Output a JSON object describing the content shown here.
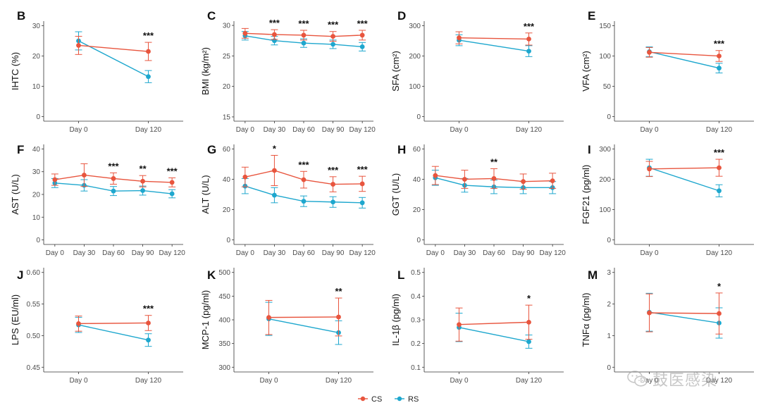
{
  "legend": {
    "entries": [
      {
        "name": "CS",
        "color": "#E8553E"
      },
      {
        "name": "RS",
        "color": "#1EA7CE"
      }
    ]
  },
  "watermark": {
    "text": "鼓医感染",
    "icon": "wechat-icon"
  },
  "chart_data": [
    {
      "panel": "B",
      "type": "line",
      "ylabel": "IHTC (%)",
      "categories": [
        "Day 0",
        "Day 120"
      ],
      "ylim": [
        -1.5,
        31.5
      ],
      "yticks": [
        0,
        10,
        20,
        30
      ],
      "series": [
        {
          "name": "CS",
          "values": [
            23.5,
            21.5
          ],
          "err": [
            3.0,
            3.0
          ]
        },
        {
          "name": "RS",
          "values": [
            25.0,
            13.2
          ],
          "err": [
            3.0,
            2.0
          ]
        }
      ],
      "annotations": [
        {
          "category": "Day 120",
          "text": "***"
        }
      ]
    },
    {
      "panel": "C",
      "type": "line",
      "ylabel": "BMI (kg/m²)",
      "categories": [
        "Day 0",
        "Day 30",
        "Day 60",
        "Day 90",
        "Day 120"
      ],
      "ylim": [
        14.3,
        30.7
      ],
      "yticks": [
        15,
        20,
        25,
        30
      ],
      "series": [
        {
          "name": "CS",
          "values": [
            28.7,
            28.5,
            28.4,
            28.2,
            28.4
          ],
          "err": [
            0.8,
            0.8,
            0.8,
            0.8,
            0.8
          ]
        },
        {
          "name": "RS",
          "values": [
            28.3,
            27.5,
            27.1,
            26.9,
            26.5
          ],
          "err": [
            0.7,
            0.7,
            0.7,
            0.7,
            0.7
          ]
        }
      ],
      "annotations": [
        {
          "category": "Day 30",
          "text": "***"
        },
        {
          "category": "Day 60",
          "text": "***"
        },
        {
          "category": "Day 90",
          "text": "***"
        },
        {
          "category": "Day 120",
          "text": "***"
        }
      ]
    },
    {
      "panel": "D",
      "type": "line",
      "ylabel": "SFA (cm²)",
      "categories": [
        "Day 0",
        "Day 120"
      ],
      "ylim": [
        -15,
        315
      ],
      "yticks": [
        0,
        100,
        200,
        300
      ],
      "series": [
        {
          "name": "CS",
          "values": [
            260,
            256
          ],
          "err": [
            20,
            20
          ]
        },
        {
          "name": "RS",
          "values": [
            252,
            216
          ],
          "err": [
            18,
            18
          ]
        }
      ],
      "annotations": [
        {
          "category": "Day 120",
          "text": "***"
        }
      ]
    },
    {
      "panel": "E",
      "type": "line",
      "ylabel": "VFA (cm²)",
      "categories": [
        "Day 0",
        "Day 120"
      ],
      "ylim": [
        -7.5,
        157.5
      ],
      "yticks": [
        0,
        50,
        100,
        150
      ],
      "series": [
        {
          "name": "CS",
          "values": [
            106,
            100
          ],
          "err": [
            8,
            9
          ]
        },
        {
          "name": "RS",
          "values": [
            107,
            80
          ],
          "err": [
            8,
            8
          ]
        }
      ],
      "annotations": [
        {
          "category": "Day 120",
          "text": "***"
        }
      ]
    },
    {
      "panel": "F",
      "type": "line",
      "ylabel": "AST (U/L)",
      "categories": [
        "Day 0",
        "Day 30",
        "Day 60",
        "Day 90",
        "Day 120"
      ],
      "ylim": [
        -2,
        42
      ],
      "yticks": [
        0,
        10,
        20,
        30,
        40
      ],
      "series": [
        {
          "name": "CS",
          "values": [
            26.5,
            28.5,
            27.0,
            25.8,
            25.3
          ],
          "err": [
            2.5,
            5.0,
            2.5,
            2.5,
            2.0
          ]
        },
        {
          "name": "RS",
          "values": [
            25.0,
            24.0,
            21.5,
            21.7,
            20.3
          ],
          "err": [
            2.0,
            2.5,
            2.0,
            2.0,
            1.8
          ]
        }
      ],
      "annotations": [
        {
          "category": "Day 60",
          "text": "***"
        },
        {
          "category": "Day 90",
          "text": "**"
        },
        {
          "category": "Day 120",
          "text": "***"
        }
      ]
    },
    {
      "panel": "G",
      "type": "line",
      "ylabel": "ALT (U/L)",
      "categories": [
        "Day 0",
        "Day 30",
        "Day 60",
        "Day 90",
        "Day 120"
      ],
      "ylim": [
        -3,
        63
      ],
      "yticks": [
        0,
        20,
        40,
        60
      ],
      "series": [
        {
          "name": "CS",
          "values": [
            41.5,
            45.8,
            39.7,
            36.7,
            37.0
          ],
          "err": [
            6.5,
            10.0,
            5.5,
            5.0,
            5.0
          ]
        },
        {
          "name": "RS",
          "values": [
            35.5,
            29.5,
            25.5,
            25.0,
            24.5
          ],
          "err": [
            5.0,
            5.0,
            3.5,
            3.5,
            3.5
          ]
        }
      ],
      "annotations": [
        {
          "category": "Day 30",
          "text": "*"
        },
        {
          "category": "Day 60",
          "text": "***"
        },
        {
          "category": "Day 90",
          "text": "***"
        },
        {
          "category": "Day 120",
          "text": "***"
        }
      ]
    },
    {
      "panel": "H",
      "type": "line",
      "ylabel": "GGT (U/L)",
      "categories": [
        "Day 0",
        "Day 30",
        "Day 60",
        "Day 90",
        "Day 120"
      ],
      "ylim": [
        -3,
        63
      ],
      "yticks": [
        0,
        20,
        40,
        60
      ],
      "series": [
        {
          "name": "CS",
          "values": [
            42.5,
            40.0,
            40.5,
            38.5,
            39.0
          ],
          "err": [
            6.0,
            6.0,
            6.5,
            5.0,
            5.0
          ]
        },
        {
          "name": "RS",
          "values": [
            41.0,
            36.0,
            35.0,
            34.5,
            34.5
          ],
          "err": [
            5.0,
            4.5,
            4.5,
            4.0,
            4.0
          ]
        }
      ],
      "annotations": [
        {
          "category": "Day 60",
          "text": "**"
        }
      ]
    },
    {
      "panel": "I",
      "type": "line",
      "ylabel": "FGF21 (pg/ml)",
      "categories": [
        "Day 0",
        "Day 120"
      ],
      "ylim": [
        -15,
        315
      ],
      "yticks": [
        0,
        100,
        200,
        300
      ],
      "series": [
        {
          "name": "CS",
          "values": [
            234,
            238
          ],
          "err": [
            25,
            28
          ]
        },
        {
          "name": "RS",
          "values": [
            238,
            162
          ],
          "err": [
            28,
            20
          ]
        }
      ],
      "annotations": [
        {
          "category": "Day 120",
          "text": "***"
        }
      ]
    },
    {
      "panel": "J",
      "type": "line",
      "ylabel": "LPS (EU/ml)",
      "categories": [
        "Day 0",
        "Day 120"
      ],
      "ylim": [
        0.4425,
        0.6075
      ],
      "yticks": [
        0.45,
        0.5,
        0.55,
        0.6
      ],
      "ytick_labels": [
        "0.45",
        "0.50",
        "0.55",
        "0.60"
      ],
      "series": [
        {
          "name": "CS",
          "values": [
            0.519,
            0.52
          ],
          "err": [
            0.012,
            0.012
          ]
        },
        {
          "name": "RS",
          "values": [
            0.517,
            0.493
          ],
          "err": [
            0.012,
            0.01
          ]
        }
      ],
      "annotations": [
        {
          "category": "Day 120",
          "text": "***"
        }
      ]
    },
    {
      "panel": "K",
      "type": "line",
      "ylabel": "MCP-1 (pg/ml)",
      "categories": [
        "Day 0",
        "Day 120"
      ],
      "ylim": [
        290,
        510
      ],
      "yticks": [
        300,
        350,
        400,
        450,
        500
      ],
      "series": [
        {
          "name": "CS",
          "values": [
            405,
            406
          ],
          "err": [
            36,
            40
          ]
        },
        {
          "name": "RS",
          "values": [
            402,
            373
          ],
          "err": [
            35,
            25
          ]
        }
      ],
      "annotations": [
        {
          "category": "Day 120",
          "text": "**"
        }
      ]
    },
    {
      "panel": "L",
      "type": "line",
      "ylabel": "IL-1β (pg/ml)",
      "categories": [
        "Day 0",
        "Day 120"
      ],
      "ylim": [
        0.08,
        0.52
      ],
      "yticks": [
        0.1,
        0.2,
        0.3,
        0.4,
        0.5
      ],
      "series": [
        {
          "name": "CS",
          "values": [
            0.28,
            0.29
          ],
          "err": [
            0.07,
            0.072
          ]
        },
        {
          "name": "RS",
          "values": [
            0.268,
            0.208
          ],
          "err": [
            0.06,
            0.028
          ]
        }
      ],
      "annotations": [
        {
          "category": "Day 120",
          "text": "*"
        }
      ]
    },
    {
      "panel": "M",
      "type": "line",
      "ylabel": "TNFα (pg/ml)",
      "categories": [
        "Day 0",
        "Day 120"
      ],
      "ylim": [
        -0.15,
        3.15
      ],
      "yticks": [
        0,
        1,
        2,
        3
      ],
      "series": [
        {
          "name": "CS",
          "values": [
            1.72,
            1.7
          ],
          "err": [
            0.6,
            0.65
          ]
        },
        {
          "name": "RS",
          "values": [
            1.74,
            1.4
          ],
          "err": [
            0.6,
            0.48
          ]
        }
      ],
      "annotations": [
        {
          "category": "Day 120",
          "text": "*"
        }
      ]
    }
  ]
}
